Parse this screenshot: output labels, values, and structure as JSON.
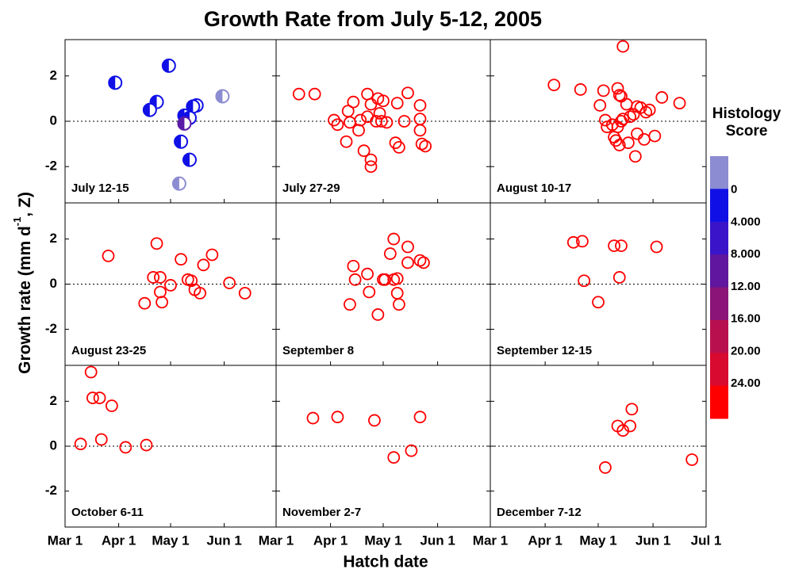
{
  "chart_data": {
    "type": "scatter",
    "title": "Growth Rate from July 5-12, 2005",
    "x_label": "Hatch date",
    "y_label": [
      "Growth rate  (mm d",
      "-1",
      ", Z)"
    ],
    "xlim": [
      0,
      122
    ],
    "ylim": [
      -3.6,
      3.6
    ],
    "xticks": [
      {
        "value": 0,
        "label": "Mar 1"
      },
      {
        "value": 31,
        "label": "Apr 1"
      },
      {
        "value": 61,
        "label": "May 1"
      },
      {
        "value": 92,
        "label": "Jun 1"
      },
      {
        "value": 122,
        "label": "Jul 1"
      }
    ],
    "yticks": [
      -2,
      0,
      2
    ],
    "hline": 0,
    "color": "#ff0000",
    "panels": [
      {
        "label": "July 12-15",
        "marker": "half",
        "x": [
          29,
          60,
          53,
          49,
          76,
          74,
          69,
          72,
          69,
          67,
          72,
          91,
          66
        ],
        "values": [
          1.7,
          2.45,
          0.85,
          0.5,
          0.7,
          0.65,
          0.25,
          0.15,
          -0.1,
          -0.9,
          -1.7,
          1.1,
          -2.75
        ],
        "colors": [
          "#1010e6",
          "#1010e6",
          "#1010e6",
          "#1010e6",
          "#1010e6",
          "#1010e6",
          "#1010e6",
          "#1010e6",
          "#5a1aa8",
          "#1010e6",
          "#1010e6",
          "#8c8cd2",
          "#8c8cd2"
        ]
      },
      {
        "label": "July 27-29",
        "marker": "open",
        "x": [
          13,
          22,
          33,
          35,
          40,
          41,
          44,
          42,
          47,
          48,
          50,
          52,
          52,
          54,
          54,
          54,
          57,
          58,
          59,
          60,
          61,
          63,
          68,
          69,
          75,
          73,
          70,
          82,
          82,
          82,
          83,
          85
        ],
        "values": [
          1.2,
          1.2,
          0.05,
          -0.15,
          -0.9,
          0.45,
          0.85,
          -0.05,
          -0.4,
          0.05,
          -1.3,
          1.2,
          0.2,
          -1.7,
          -2.0,
          0.75,
          0,
          1.0,
          0.35,
          0,
          0.9,
          -0.05,
          -0.95,
          0.8,
          1.25,
          0,
          -1.15,
          0.7,
          0.1,
          -0.4,
          -1.0,
          -1.1
        ]
      },
      {
        "label": "August 10-17",
        "marker": "open",
        "x": [
          36,
          51,
          62,
          64,
          65,
          66,
          69,
          70,
          71,
          72,
          73,
          73,
          72,
          74,
          75,
          75,
          77,
          79,
          78,
          81,
          82,
          83,
          85,
          83,
          87,
          88,
          90,
          93,
          97,
          107,
          74
        ],
        "values": [
          1.6,
          1.4,
          0.7,
          1.35,
          0.05,
          -0.25,
          -0.15,
          -0.7,
          -0.85,
          1.45,
          1.15,
          -1.05,
          -0.25,
          0,
          3.3,
          0.1,
          0.75,
          0.2,
          -0.95,
          0.3,
          -1.55,
          0.65,
          0.6,
          -0.55,
          -0.8,
          0.4,
          0.5,
          -0.65,
          1.05,
          0.8,
          1.1
        ]
      },
      {
        "label": "August 23-25",
        "marker": "open",
        "x": [
          25,
          46,
          51,
          53,
          55,
          55,
          56,
          61,
          67,
          71,
          73,
          75,
          78,
          80,
          85,
          95,
          104
        ],
        "values": [
          1.25,
          -0.85,
          0.3,
          1.8,
          0.3,
          -0.35,
          -0.8,
          -0.05,
          1.1,
          0.2,
          0.15,
          -0.25,
          -0.4,
          0.85,
          1.3,
          0.05,
          -0.4
        ]
      },
      {
        "label": "September 8",
        "marker": "open",
        "x": [
          42,
          44,
          45,
          52,
          53,
          58,
          61,
          62,
          65,
          67,
          67,
          69,
          69,
          70,
          75,
          75,
          82,
          84
        ],
        "values": [
          -0.9,
          0.8,
          0.2,
          0.45,
          -0.35,
          -1.35,
          0.2,
          0.2,
          1.35,
          2.0,
          0.2,
          0.25,
          -0.4,
          -0.9,
          1.65,
          0.95,
          1.05,
          0.95
        ]
      },
      {
        "label": "September 12-15",
        "marker": "open",
        "x": [
          47,
          52,
          53,
          61,
          70,
          74,
          73,
          94
        ],
        "values": [
          1.85,
          1.9,
          0.15,
          -0.8,
          1.7,
          1.7,
          0.3,
          1.65
        ]
      },
      {
        "label": "October 6-11",
        "marker": "open",
        "x": [
          9,
          15,
          16,
          20,
          21,
          27,
          35,
          47
        ],
        "values": [
          0.1,
          3.3,
          2.15,
          2.15,
          0.3,
          1.8,
          -0.05,
          0.05
        ]
      },
      {
        "label": "November 2-7",
        "marker": "open",
        "x": [
          21,
          35,
          56,
          67,
          77,
          82
        ],
        "values": [
          1.25,
          1.3,
          1.15,
          -0.5,
          -0.2,
          1.3
        ]
      },
      {
        "label": "December 7-12",
        "marker": "open",
        "x": [
          65,
          72,
          75,
          79,
          80,
          114
        ],
        "values": [
          -0.95,
          0.9,
          0.7,
          0.9,
          1.65,
          -0.6
        ]
      }
    ],
    "colorbar": {
      "title": "Histology Score",
      "lim": [
        -4.2,
        28.3
      ],
      "colors": [
        "#8c8cd2",
        "#1010e6",
        "#3a14c8",
        "#60169e",
        "#8a1478",
        "#b8104e",
        "#d80a30",
        "#ff0000"
      ],
      "ticks": [
        {
          "value": 0,
          "label": "0"
        },
        {
          "value": 4,
          "label": "4.000"
        },
        {
          "value": 8,
          "label": "8.000"
        },
        {
          "value": 12,
          "label": "12.00"
        },
        {
          "value": 16,
          "label": "16.00"
        },
        {
          "value": 20,
          "label": "20.00"
        },
        {
          "value": 24,
          "label": "24.00"
        }
      ]
    }
  }
}
